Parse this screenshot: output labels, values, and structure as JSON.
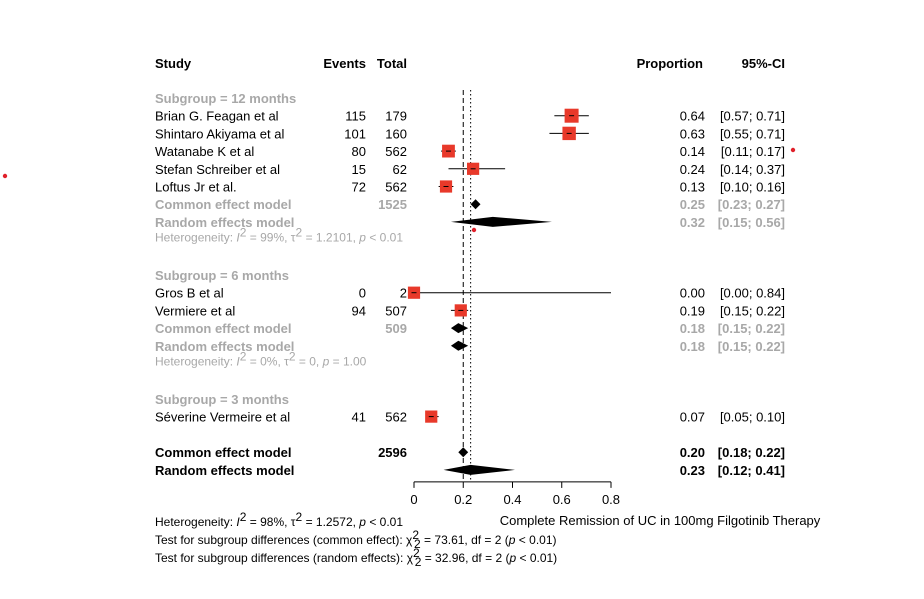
{
  "header": {
    "study": "Study",
    "events": "Events",
    "total": "Total",
    "proportion": "Proportion",
    "ci": "95%-CI"
  },
  "subgroups": [
    {
      "label": "Subgroup = 12 months",
      "studies": [
        {
          "name": "Brian G. Feagan et al",
          "events": "115",
          "total": "179",
          "est": 0.64,
          "lo": 0.57,
          "hi": 0.71,
          "prop_text": "0.64",
          "ci_text": "[0.57; 0.71]",
          "weight": 1.0
        },
        {
          "name": "Shintaro Akiyama et al",
          "events": "101",
          "total": "160",
          "est": 0.63,
          "lo": 0.55,
          "hi": 0.71,
          "prop_text": "0.63",
          "ci_text": "[0.55; 0.71]",
          "weight": 0.95
        },
        {
          "name": "Watanabe K et al",
          "events": "80",
          "total": "562",
          "est": 0.14,
          "lo": 0.11,
          "hi": 0.17,
          "prop_text": "0.14",
          "ci_text": "[0.11; 0.17]",
          "weight": 0.9
        },
        {
          "name": "Stefan Schreiber et al",
          "events": "15",
          "total": "62",
          "est": 0.24,
          "lo": 0.14,
          "hi": 0.37,
          "prop_text": "0.24",
          "ci_text": "[0.14; 0.37]",
          "weight": 0.85
        },
        {
          "name": "Loftus Jr et al.",
          "events": "72",
          "total": "562",
          "est": 0.13,
          "lo": 0.1,
          "hi": 0.16,
          "prop_text": "0.13",
          "ci_text": "[0.10; 0.16]",
          "weight": 0.85
        }
      ],
      "common": {
        "label": "Common effect model",
        "total": "1525",
        "est": 0.25,
        "lo": 0.23,
        "hi": 0.27,
        "prop_text": "0.25",
        "ci_text": "[0.23; 0.27]"
      },
      "random": {
        "label": "Random effects model",
        "est": 0.32,
        "lo": 0.15,
        "hi": 0.56,
        "prop_text": "0.32",
        "ci_text": "[0.15; 0.56]"
      },
      "heterogeneity": {
        "prefix": "Heterogeneity: ",
        "i2": "= 99%, ",
        "tau2": "= 1.2101, ",
        "p": " < 0.01"
      }
    },
    {
      "label": "Subgroup = 6 months",
      "studies": [
        {
          "name": "Gros B et al",
          "events": "0",
          "total": "2",
          "est": 0.0,
          "lo": 0.0,
          "hi": 0.84,
          "prop_text": "0.00",
          "ci_text": "[0.00; 0.84]",
          "weight": 0.85
        },
        {
          "name": "Vermiere et al",
          "events": "94",
          "total": "507",
          "est": 0.19,
          "lo": 0.15,
          "hi": 0.22,
          "prop_text": "0.19",
          "ci_text": "[0.15; 0.22]",
          "weight": 0.85
        }
      ],
      "common": {
        "label": "Common effect model",
        "total": "509",
        "est": 0.18,
        "lo": 0.15,
        "hi": 0.22,
        "prop_text": "0.18",
        "ci_text": "[0.15; 0.22]"
      },
      "random": {
        "label": "Random effects model",
        "est": 0.18,
        "lo": 0.15,
        "hi": 0.22,
        "prop_text": "0.18",
        "ci_text": "[0.15; 0.22]"
      },
      "heterogeneity": {
        "prefix": "Heterogeneity: ",
        "i2": "= 0%, ",
        "tau2": "= 0, ",
        "p": " = 1.00"
      }
    },
    {
      "label": "Subgroup = 3 months",
      "studies": [
        {
          "name": "Séverine Vermeire et al",
          "events": "41",
          "total": "562",
          "est": 0.07,
          "lo": 0.05,
          "hi": 0.1,
          "prop_text": "0.07",
          "ci_text": "[0.05; 0.10]",
          "weight": 0.85
        }
      ]
    }
  ],
  "overall": {
    "common": {
      "label": "Common effect model",
      "total": "2596",
      "est": 0.2,
      "lo": 0.18,
      "hi": 0.22,
      "prop_text": "0.20",
      "ci_text": "[0.18; 0.22]"
    },
    "random": {
      "label": "Random effects model",
      "est": 0.23,
      "lo": 0.12,
      "hi": 0.41,
      "prop_text": "0.23",
      "ci_text": "[0.12; 0.41]"
    }
  },
  "axis": {
    "xlim": [
      0,
      0.8
    ],
    "ticks": [
      0,
      0.2,
      0.4,
      0.6,
      0.8
    ],
    "tick_labels": [
      "0",
      "0.2",
      "0.4",
      "0.6",
      "0.8"
    ],
    "xlabel": "Complete Remission of UC in 100mg Filgotinib Therapy",
    "common_ref": 0.2,
    "random_ref": 0.23
  },
  "footer": {
    "heterogeneity": {
      "prefix": "Heterogeneity: ",
      "i2": "= 98%, ",
      "tau2": "= 1.2572, ",
      "p": " < 0.01"
    },
    "test_common": {
      "prefix": "Test for subgroup differences (common effect): ",
      "chi": "= 73.61, df = 2 (",
      "p": " < 0.01)"
    },
    "test_random": {
      "prefix": "Test for subgroup differences (random effects): ",
      "chi": "= 32.96, df = 2 (",
      "p": " < 0.01)"
    },
    "df": "2"
  },
  "colors": {
    "square": "#e8392a",
    "grey": "#a8a8a8",
    "line": "#000000",
    "stray_dot": "#e0202a"
  },
  "chart_data": {
    "type": "forest",
    "xlabel": "Complete Remission of UC in 100mg Filgotinib Therapy",
    "xlim": [
      0,
      0.8
    ],
    "columns": [
      "Study",
      "Events",
      "Total",
      "Proportion",
      "95%-CI"
    ],
    "studies": [
      {
        "study": "Brian G. Feagan et al",
        "subgroup": "Subgroup = 12 months",
        "events": 115,
        "total": 179,
        "proportion": 0.64,
        "ci": [
          0.57,
          0.71
        ]
      },
      {
        "study": "Shintaro Akiyama et al",
        "subgroup": "Subgroup = 12 months",
        "events": 101,
        "total": 160,
        "proportion": 0.63,
        "ci": [
          0.55,
          0.71
        ]
      },
      {
        "study": "Watanabe K et al",
        "subgroup": "Subgroup = 12 months",
        "events": 80,
        "total": 562,
        "proportion": 0.14,
        "ci": [
          0.11,
          0.17
        ]
      },
      {
        "study": "Stefan Schreiber et al",
        "subgroup": "Subgroup = 12 months",
        "events": 15,
        "total": 62,
        "proportion": 0.24,
        "ci": [
          0.14,
          0.37
        ]
      },
      {
        "study": "Loftus Jr et al.",
        "subgroup": "Subgroup = 12 months",
        "events": 72,
        "total": 562,
        "proportion": 0.13,
        "ci": [
          0.1,
          0.16
        ]
      },
      {
        "study": "Gros B et al",
        "subgroup": "Subgroup = 6 months",
        "events": 0,
        "total": 2,
        "proportion": 0.0,
        "ci": [
          0.0,
          0.84
        ]
      },
      {
        "study": "Vermiere et al",
        "subgroup": "Subgroup = 6 months",
        "events": 94,
        "total": 507,
        "proportion": 0.19,
        "ci": [
          0.15,
          0.22
        ]
      },
      {
        "study": "Séverine Vermeire et al",
        "subgroup": "Subgroup = 3 months",
        "events": 41,
        "total": 562,
        "proportion": 0.07,
        "ci": [
          0.05,
          0.1
        ]
      }
    ],
    "pooled": [
      {
        "model": "Common effect model",
        "subgroup": "Subgroup = 12 months",
        "total": 1525,
        "proportion": 0.25,
        "ci": [
          0.23,
          0.27
        ]
      },
      {
        "model": "Random effects model",
        "subgroup": "Subgroup = 12 months",
        "proportion": 0.32,
        "ci": [
          0.15,
          0.56
        ]
      },
      {
        "model": "Common effect model",
        "subgroup": "Subgroup = 6 months",
        "total": 509,
        "proportion": 0.18,
        "ci": [
          0.15,
          0.22
        ]
      },
      {
        "model": "Random effects model",
        "subgroup": "Subgroup = 6 months",
        "proportion": 0.18,
        "ci": [
          0.15,
          0.22
        ]
      },
      {
        "model": "Common effect model",
        "subgroup": "Overall",
        "total": 2596,
        "proportion": 0.2,
        "ci": [
          0.18,
          0.22
        ]
      },
      {
        "model": "Random effects model",
        "subgroup": "Overall",
        "proportion": 0.23,
        "ci": [
          0.12,
          0.41
        ]
      }
    ]
  }
}
